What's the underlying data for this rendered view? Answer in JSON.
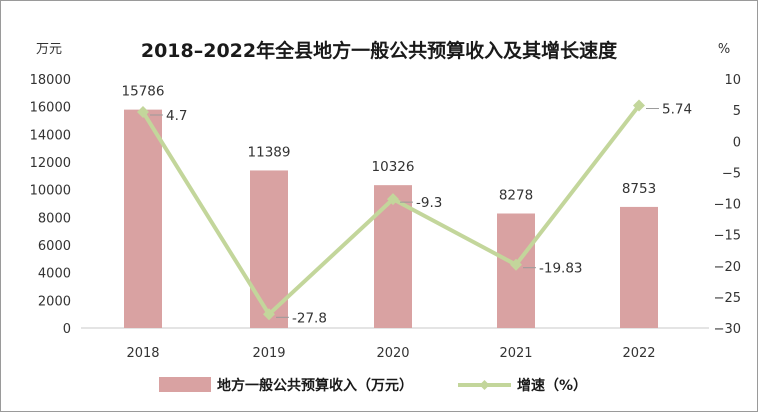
{
  "chart_data": {
    "type": "bar",
    "title": "2018–2022年全县地方一般公共预算收入及其增长速度",
    "left_unit": "万元",
    "right_unit": "%",
    "categories": [
      "2018",
      "2019",
      "2020",
      "2021",
      "2022"
    ],
    "left_axis": {
      "min": 0,
      "max": 18000,
      "step": 2000,
      "ticks": [
        "0",
        "2000",
        "4000",
        "6000",
        "8000",
        "10000",
        "12000",
        "14000",
        "16000",
        "18000"
      ]
    },
    "right_axis": {
      "min": -30,
      "max": 10,
      "step": 5,
      "ticks": [
        "−30",
        "−25",
        "−20",
        "−15",
        "−10",
        "−5",
        "0",
        "5",
        "10"
      ]
    },
    "series": [
      {
        "name": "地方一般公共预算收入（万元）",
        "kind": "bar",
        "axis": "left",
        "color": "#d9a2a2",
        "values": [
          15786,
          11389,
          10326,
          8278,
          8753
        ],
        "labels": [
          "15786",
          "11389",
          "10326",
          "8278",
          "8753"
        ]
      },
      {
        "name": "增速（%）",
        "kind": "line",
        "axis": "right",
        "color": "#c3d69b",
        "values": [
          4.7,
          -27.8,
          -9.3,
          -19.83,
          5.74
        ],
        "labels": [
          "4.7",
          "-27.8",
          "-9.3",
          "-19.83",
          "5.74"
        ]
      }
    ],
    "grid": false,
    "legend": "bottom"
  }
}
